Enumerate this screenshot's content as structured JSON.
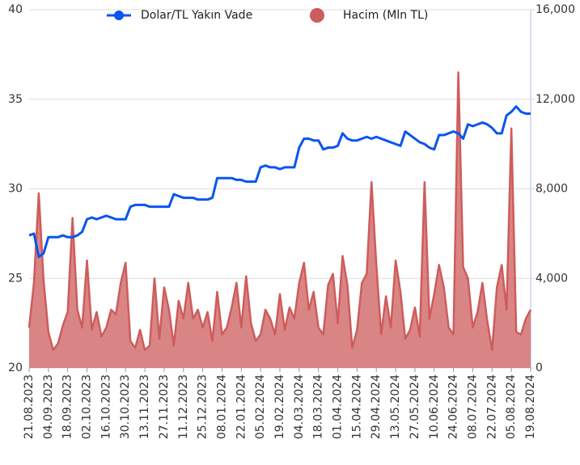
{
  "chart_data": {
    "type": "line",
    "legend": "top",
    "grid": true,
    "categories": [
      "21.08.2023",
      null,
      null,
      null,
      "04.09.2023",
      null,
      null,
      null,
      "18.09.2023",
      null,
      null,
      null,
      "02.10.2023",
      null,
      null,
      null,
      "16.10.2023",
      null,
      null,
      null,
      "30.10.2023",
      null,
      null,
      null,
      "13.11.2023",
      null,
      null,
      null,
      "27.11.2023",
      null,
      null,
      null,
      "11.12.2023",
      null,
      null,
      null,
      "25.12.2023",
      null,
      null,
      null,
      "08.01.2024",
      null,
      null,
      null,
      "22.01.2024",
      null,
      null,
      null,
      "05.02.2024",
      null,
      null,
      null,
      "19.02.2024",
      null,
      null,
      null,
      "04.03.2024",
      null,
      null,
      null,
      "18.03.2024",
      null,
      null,
      null,
      "01.04.2024",
      null,
      null,
      null,
      "15.04.2024",
      null,
      null,
      null,
      "29.04.2024",
      null,
      null,
      null,
      "13.05.2024",
      null,
      null,
      null,
      "27.05.2024",
      null,
      null,
      null,
      "10.06.2024",
      null,
      null,
      null,
      "24.06.2024",
      null,
      null,
      null,
      "08.07.2024",
      null,
      null,
      null,
      "22.07.2024",
      null,
      null,
      null,
      "05.08.2024",
      null,
      null,
      null,
      "19.08.2024"
    ],
    "series": [
      {
        "name": "Dolar/TL Yakın Vade",
        "type": "line",
        "color": "#0a55f0",
        "axis": "y",
        "values": [
          27.4,
          27.5,
          26.2,
          26.4,
          27.3,
          27.3,
          27.3,
          27.4,
          27.3,
          27.3,
          27.4,
          27.6,
          28.3,
          28.4,
          28.3,
          28.4,
          28.5,
          28.4,
          28.3,
          28.3,
          28.3,
          29.0,
          29.1,
          29.1,
          29.1,
          29.0,
          29.0,
          29.0,
          29.0,
          29.0,
          29.7,
          29.6,
          29.5,
          29.5,
          29.5,
          29.4,
          29.4,
          29.4,
          29.5,
          30.6,
          30.6,
          30.6,
          30.6,
          30.5,
          30.5,
          30.4,
          30.4,
          30.4,
          31.2,
          31.3,
          31.2,
          31.2,
          31.1,
          31.2,
          31.2,
          31.2,
          32.3,
          32.8,
          32.8,
          32.7,
          32.7,
          32.2,
          32.3,
          32.3,
          32.4,
          33.1,
          32.8,
          32.7,
          32.7,
          32.8,
          32.9,
          32.8,
          32.9,
          32.8,
          32.7,
          32.6,
          32.5,
          32.4,
          33.2,
          33.0,
          32.8,
          32.6,
          32.5,
          32.3,
          32.2,
          33.0,
          33.0,
          33.1,
          33.2,
          33.1,
          32.8,
          33.6,
          33.5,
          33.6,
          33.7,
          33.6,
          33.4,
          33.1,
          33.1,
          34.1,
          34.3,
          34.6,
          34.3,
          34.2,
          34.2
        ]
      },
      {
        "name": "Hacim (Mln TL)",
        "type": "area",
        "color": "#cd5c5c",
        "axis": "y2",
        "values": [
          1800,
          3800,
          7800,
          3900,
          1600,
          800,
          1100,
          1900,
          2500,
          6700,
          2600,
          1800,
          4800,
          1700,
          2500,
          1400,
          1800,
          2600,
          2400,
          3800,
          4700,
          1200,
          900,
          1700,
          800,
          1000,
          4000,
          1300,
          3600,
          2600,
          1000,
          3000,
          2200,
          3800,
          2200,
          2600,
          1800,
          2500,
          1200,
          3400,
          1500,
          1800,
          2700,
          3800,
          1800,
          4100,
          2000,
          1200,
          1500,
          2600,
          2200,
          1500,
          3300,
          1700,
          2700,
          2200,
          3800,
          4700,
          2600,
          3400,
          1800,
          1500,
          3700,
          4200,
          2000,
          5000,
          3700,
          900,
          1700,
          3800,
          4200,
          8300,
          4600,
          1500,
          3200,
          1800,
          4800,
          3400,
          1300,
          1700,
          2700,
          1400,
          8300,
          2200,
          3300,
          4600,
          3600,
          1800,
          1500,
          13200,
          4500,
          4000,
          1800,
          2500,
          3800,
          2100,
          800,
          3600,
          4600,
          2600,
          10700,
          1600,
          1500,
          2200,
          2600
        ]
      }
    ],
    "ylim": [
      20,
      40
    ],
    "yticks": [
      20,
      25,
      30,
      35,
      40
    ],
    "y2lim": [
      0,
      16000
    ],
    "y2ticks": [
      0,
      {
        "value": 4000,
        "label": "4,000"
      },
      {
        "value": 8000,
        "label": "8,000"
      },
      {
        "value": 12000,
        "label": "12,000"
      },
      {
        "value": 16000,
        "label": "16,000"
      }
    ]
  }
}
